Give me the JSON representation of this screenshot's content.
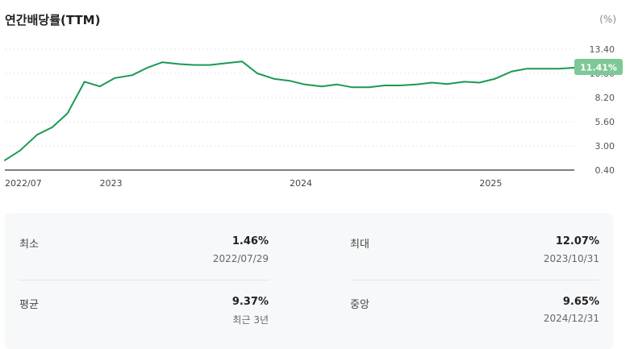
{
  "header": {
    "title": "연간배당률(TTM)",
    "unit": "(%)"
  },
  "chart_data": {
    "type": "line",
    "title": "연간배당률(TTM)",
    "ylabel": "(%)",
    "ylim": [
      0.4,
      13.4
    ],
    "y_ticks": [
      "13.40",
      "10.80",
      "8.20",
      "5.60",
      "3.00",
      "0.40"
    ],
    "x_ticks": [
      {
        "label": "2022/07",
        "x": 2022.5
      },
      {
        "label": "2023",
        "x": 2023.0
      },
      {
        "label": "2024",
        "x": 2024.0
      },
      {
        "label": "2025",
        "x": 2025.0
      }
    ],
    "xlim": [
      2022.5,
      2025.5
    ],
    "last_label": "11.41%",
    "colors": {
      "line": "#1a9a52",
      "badge": "#7dc896",
      "grid": "#e6e6e6"
    },
    "series": [
      {
        "x": [
          2022.5,
          2022.58,
          2022.67,
          2022.75,
          2022.83,
          2022.92,
          2023.0,
          2023.08,
          2023.17,
          2023.25,
          2023.33,
          2023.42,
          2023.5,
          2023.58,
          2023.67,
          2023.75,
          2023.83,
          2023.92,
          2024.0,
          2024.08,
          2024.17,
          2024.25,
          2024.33,
          2024.42,
          2024.5,
          2024.58,
          2024.67,
          2024.75,
          2024.83,
          2024.92,
          2025.0,
          2025.08,
          2025.17,
          2025.25,
          2025.33,
          2025.42,
          2025.5
        ],
        "values": [
          1.46,
          2.5,
          4.2,
          5.0,
          6.5,
          9.9,
          9.4,
          10.3,
          10.6,
          11.4,
          12.0,
          11.8,
          11.7,
          11.7,
          11.9,
          12.07,
          10.8,
          10.2,
          10.0,
          9.6,
          9.4,
          9.6,
          9.3,
          9.3,
          9.5,
          9.5,
          9.6,
          9.8,
          9.65,
          9.9,
          9.8,
          10.2,
          11.0,
          11.3,
          11.3,
          11.3,
          11.41
        ]
      }
    ]
  },
  "stats": {
    "min": {
      "label": "최소",
      "value": "1.46%",
      "sub": "2022/07/29"
    },
    "max": {
      "label": "최대",
      "value": "12.07%",
      "sub": "2023/10/31"
    },
    "avg": {
      "label": "평균",
      "value": "9.37%",
      "sub": "최근 3년"
    },
    "median": {
      "label": "중앙",
      "value": "9.65%",
      "sub": "2024/12/31"
    }
  }
}
